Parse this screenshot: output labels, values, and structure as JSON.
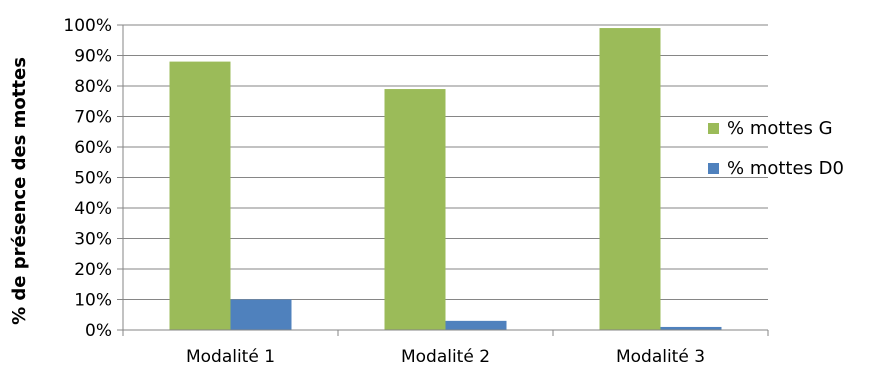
{
  "chart_data": {
    "type": "bar",
    "title": "",
    "xlabel": "",
    "ylabel": "% de présence des mottes",
    "categories": [
      "Modalité 1",
      "Modalité 2",
      "Modalité 3"
    ],
    "series": [
      {
        "name": "% mottes G",
        "values": [
          88,
          79,
          99
        ],
        "color": "#9BBB59"
      },
      {
        "name": "% mottes D0",
        "values": [
          10,
          3,
          1
        ],
        "color": "#4F81BD"
      }
    ],
    "ylim": [
      0,
      100
    ],
    "yticks": [
      0,
      10,
      20,
      30,
      40,
      50,
      60,
      70,
      80,
      90,
      100
    ],
    "ytick_labels": [
      "0%",
      "10%",
      "20%",
      "30%",
      "40%",
      "50%",
      "60%",
      "70%",
      "80%",
      "90%",
      "100%"
    ],
    "grid": true,
    "legend_position": "right",
    "colors": {
      "grid": "#868686",
      "axis": "#868686"
    }
  }
}
